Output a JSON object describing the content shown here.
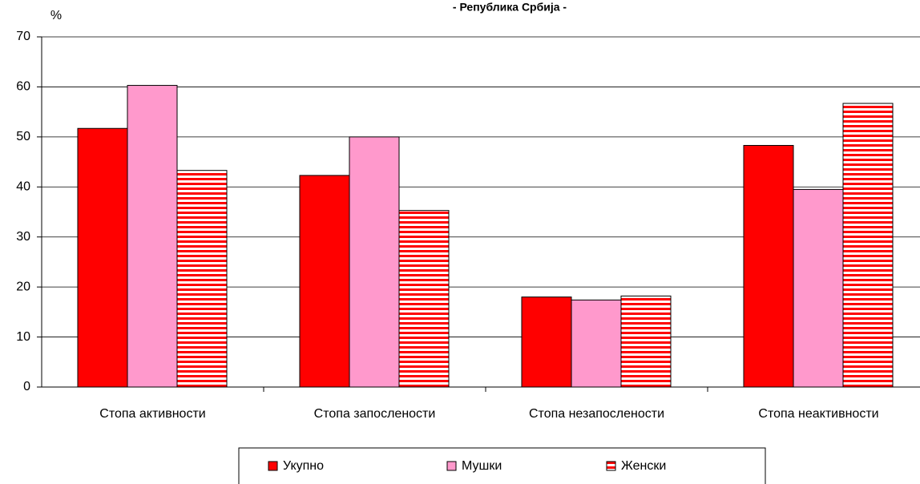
{
  "chart_data": {
    "type": "bar",
    "title": "- Република Србија -",
    "y_label": "%",
    "categories": [
      "Стопа активности",
      "Стопа запослености",
      "Стопа незапослености",
      "Стопа неактивности"
    ],
    "series": [
      {
        "name": "Укупно",
        "color": "#ff0000",
        "values": [
          51.7,
          42.3,
          18.0,
          48.3
        ]
      },
      {
        "name": "Мушки",
        "color": "#ff99cc",
        "values": [
          60.3,
          50.0,
          17.4,
          39.5
        ]
      },
      {
        "name": "Женски",
        "color": "#ff0000",
        "hatch": "horizontal",
        "values": [
          43.3,
          35.3,
          18.2,
          56.7
        ]
      }
    ],
    "ylim": [
      0,
      70
    ],
    "yticks": [
      0,
      10,
      20,
      30,
      40,
      50,
      60,
      70
    ],
    "grid": true,
    "legend": "bottom"
  }
}
